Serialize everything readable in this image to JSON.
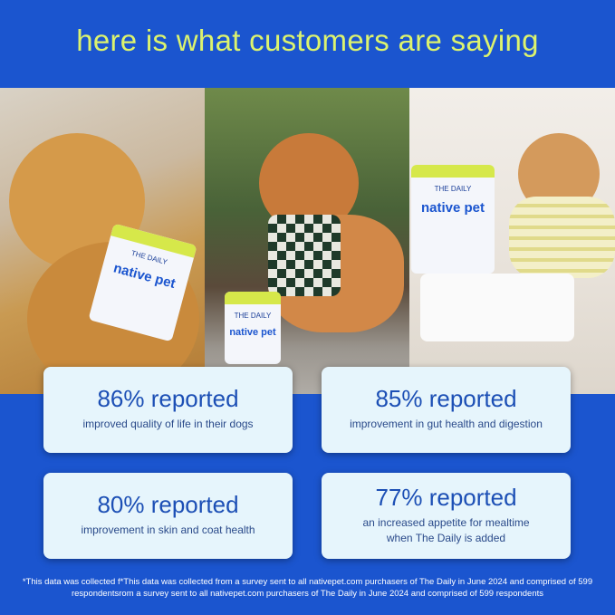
{
  "title": "here is what customers are saying",
  "photos": [
    {
      "product": {
        "label": "THE DAILY",
        "brand": "native pet"
      }
    },
    {
      "product": {
        "label": "THE DAILY",
        "brand": "native pet"
      }
    },
    {
      "product": {
        "label": "THE DAILY",
        "brand": "native pet"
      }
    }
  ],
  "stats": [
    {
      "headline": "86% reported",
      "detail": "improved quality of life in their dogs"
    },
    {
      "headline": "85% reported",
      "detail": "improvement in gut health and digestion"
    },
    {
      "headline": "80% reported",
      "detail": "improvement in skin and coat health"
    },
    {
      "headline": "77% reported",
      "detail": "an increased appetite for mealtime when The Daily is added"
    }
  ],
  "footnote": "*This data was collected f*This data was collected from a survey sent to all nativepet.com purchasers of The Daily in June 2024 and comprised of 599 respondentsrom a survey sent to all nativepet.com purchasers of The Daily in June 2024 and comprised of 599 respondents",
  "colors": {
    "background": "#1b55cf",
    "title": "#dcf36e",
    "card": "#e6f5fc",
    "card_text": "#1c4fb5"
  }
}
